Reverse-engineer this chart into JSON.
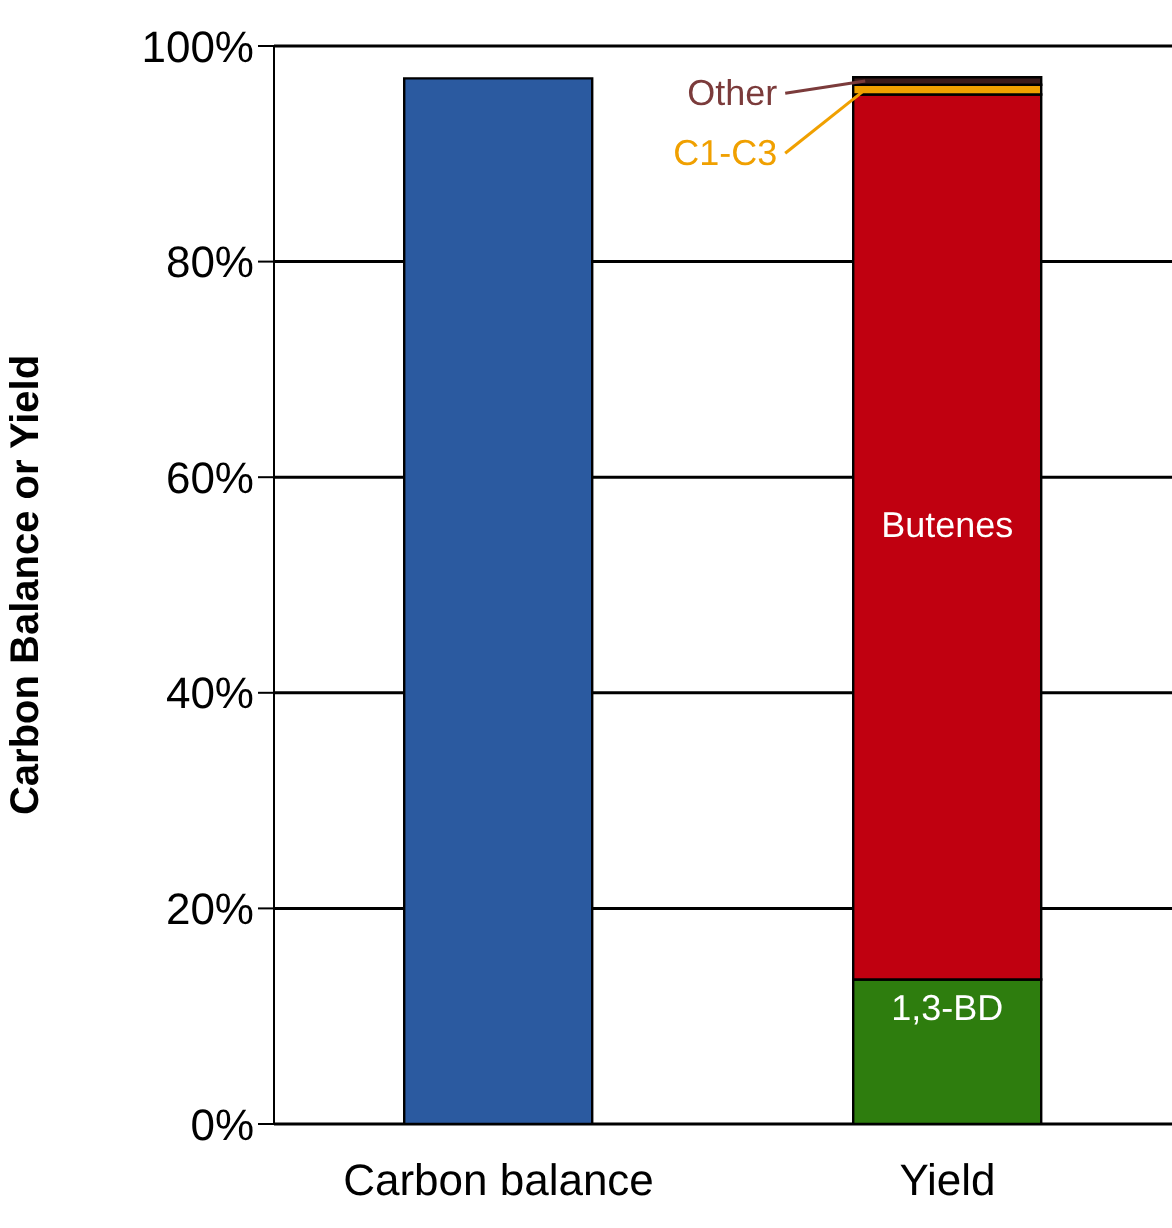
{
  "chart_data": {
    "type": "bar",
    "stacked": true,
    "ylabel": "Carbon Balance or Yield",
    "categories": [
      "Carbon balance",
      "Yield"
    ],
    "series": [
      {
        "color": "#2b5aa0",
        "values": [
          97.0,
          null
        ]
      },
      {
        "name": "1,3-BD",
        "color": "#2e7d0e",
        "values": [
          null,
          13.4
        ]
      },
      {
        "name": "Butenes",
        "color": "#c00010",
        "values": [
          null,
          82.1
        ]
      },
      {
        "name": "C1-C3",
        "color": "#f0a000",
        "values": [
          null,
          0.9
        ]
      },
      {
        "name": "Other",
        "color": "#3a1a1a",
        "values": [
          null,
          0.7
        ]
      }
    ],
    "ylim": [
      0,
      100
    ],
    "yticks": [
      {
        "value": 0,
        "label": "0%"
      },
      {
        "value": 20,
        "label": "20%"
      },
      {
        "value": 40,
        "label": "40%"
      },
      {
        "value": 60,
        "label": "60%"
      },
      {
        "value": 80,
        "label": "80%"
      },
      {
        "value": 100,
        "label": "100%"
      }
    ],
    "grid": "y",
    "legend": false
  }
}
